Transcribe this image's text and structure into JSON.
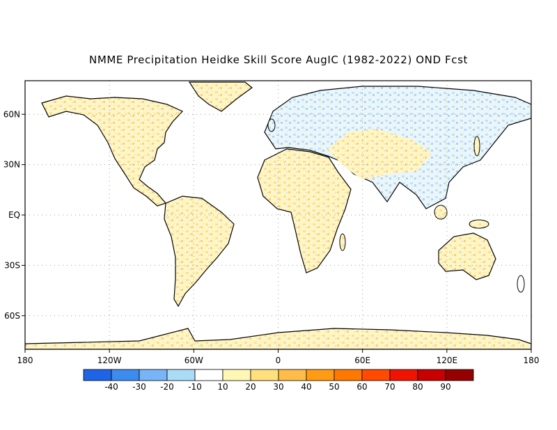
{
  "title": "NMME Precipitation Heidke Skill Score AugIC (1982-2022) OND Fcst",
  "lat_labels": [
    "60N",
    "30N",
    "EQ",
    "30S",
    "60S"
  ],
  "lat_values": [
    60,
    30,
    0,
    -30,
    -60
  ],
  "lon_labels": [
    "180",
    "120W",
    "60W",
    "0",
    "60E",
    "120E",
    "180"
  ],
  "lon_values": [
    -180,
    -120,
    -60,
    0,
    60,
    120,
    180
  ],
  "colorbar": {
    "colors": [
      "#1e64e6",
      "#3c8cf0",
      "#78b4f8",
      "#aadcf8",
      "#ffffff",
      "#fff8b4",
      "#ffe07c",
      "#ffbc48",
      "#ff9c14",
      "#ff7800",
      "#ff4a00",
      "#f01400",
      "#c80000",
      "#960000"
    ],
    "labels": [
      "-40",
      "-30",
      "-20",
      "-10",
      "10",
      "20",
      "30",
      "40",
      "50",
      "60",
      "70",
      "80",
      "90"
    ]
  },
  "map_extent": {
    "lon": [
      -180,
      180
    ],
    "lat": [
      -80,
      80
    ]
  }
}
